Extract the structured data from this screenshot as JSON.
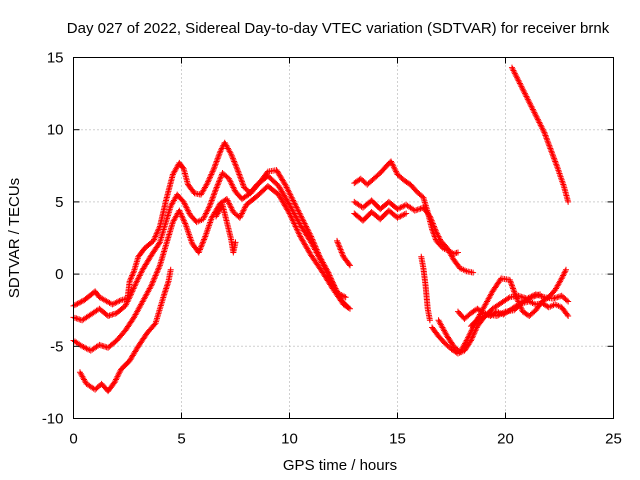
{
  "chart_data": {
    "type": "scatter",
    "title": "Day 027 of 2022, Sidereal Day-to-day VTEC variation (SDTVAR) for receiver brnk",
    "xlabel": "GPS time / hours",
    "ylabel": "SDTVAR / TECUs",
    "xlim": [
      0,
      25
    ],
    "ylim": [
      -10,
      15
    ],
    "xticks": [
      0,
      5,
      10,
      15,
      20,
      25
    ],
    "yticks": [
      -10,
      -5,
      0,
      5,
      10,
      15
    ],
    "xtick_labels": [
      "0",
      "5",
      "10",
      "15",
      "20",
      "25"
    ],
    "ytick_labels": [
      "-10",
      "-5",
      "0",
      "5",
      "10",
      "15"
    ],
    "grid": true,
    "marker": "+",
    "color": "#ff0000",
    "series": [
      {
        "name": "track-1",
        "points": [
          [
            0,
            -2.2
          ],
          [
            0.5,
            -1.8
          ],
          [
            1.0,
            -1.2
          ],
          [
            1.2,
            -1.6
          ],
          [
            1.8,
            -2.1
          ],
          [
            2.2,
            -1.8
          ],
          [
            2.5,
            -1.7
          ],
          [
            2.6,
            -0.5
          ],
          [
            2.8,
            0.2
          ],
          [
            3.0,
            1.2
          ],
          [
            3.3,
            1.8
          ],
          [
            3.7,
            2.3
          ],
          [
            4.0,
            3.3
          ],
          [
            4.3,
            5.2
          ],
          [
            4.6,
            6.9
          ],
          [
            4.9,
            7.7
          ],
          [
            5.1,
            7.3
          ],
          [
            5.3,
            6.2
          ],
          [
            5.6,
            5.6
          ],
          [
            5.9,
            5.5
          ],
          [
            6.2,
            6.3
          ],
          [
            6.5,
            7.3
          ],
          [
            6.8,
            8.5
          ],
          [
            7.0,
            9.1
          ],
          [
            7.3,
            8.3
          ],
          [
            7.6,
            7.2
          ],
          [
            7.9,
            6.0
          ],
          [
            8.2,
            5.6
          ],
          [
            8.6,
            6.3
          ],
          [
            9.0,
            7.1
          ],
          [
            9.4,
            7.2
          ],
          [
            9.8,
            6.2
          ],
          [
            10.2,
            5.0
          ],
          [
            10.6,
            3.8
          ],
          [
            11.0,
            2.6
          ],
          [
            11.4,
            1.2
          ],
          [
            11.8,
            0.1
          ],
          [
            12.2,
            -1.3
          ],
          [
            12.6,
            -1.6
          ]
        ]
      },
      {
        "name": "track-2",
        "points": [
          [
            0,
            -3.0
          ],
          [
            0.4,
            -3.2
          ],
          [
            0.8,
            -2.8
          ],
          [
            1.2,
            -2.4
          ],
          [
            1.6,
            -2.9
          ],
          [
            2.0,
            -2.7
          ],
          [
            2.4,
            -2.2
          ],
          [
            2.6,
            -1.6
          ],
          [
            2.9,
            -0.6
          ],
          [
            3.2,
            0.3
          ],
          [
            3.6,
            1.3
          ],
          [
            4.0,
            2.2
          ],
          [
            4.2,
            3.2
          ],
          [
            4.5,
            4.7
          ],
          [
            4.8,
            5.5
          ],
          [
            5.1,
            5.0
          ],
          [
            5.4,
            4.1
          ],
          [
            5.7,
            3.6
          ],
          [
            6.0,
            3.8
          ],
          [
            6.3,
            4.7
          ],
          [
            6.6,
            5.9
          ],
          [
            6.9,
            7.0
          ],
          [
            7.2,
            6.6
          ],
          [
            7.5,
            5.7
          ],
          [
            7.8,
            5.2
          ],
          [
            8.1,
            5.5
          ],
          [
            8.5,
            6.2
          ],
          [
            9.0,
            6.8
          ],
          [
            9.5,
            6.1
          ],
          [
            10.0,
            4.8
          ],
          [
            10.5,
            3.4
          ],
          [
            11.0,
            2.2
          ],
          [
            11.5,
            0.8
          ],
          [
            12.0,
            -0.6
          ],
          [
            12.4,
            -1.8
          ],
          [
            12.7,
            -2.3
          ]
        ]
      },
      {
        "name": "track-3",
        "points": [
          [
            0,
            -4.6
          ],
          [
            0.4,
            -5.0
          ],
          [
            0.8,
            -5.3
          ],
          [
            1.2,
            -4.9
          ],
          [
            1.6,
            -5.1
          ],
          [
            2.0,
            -4.6
          ],
          [
            2.4,
            -3.9
          ],
          [
            2.8,
            -3.0
          ],
          [
            3.2,
            -1.9
          ],
          [
            3.6,
            -0.8
          ],
          [
            4.0,
            0.6
          ],
          [
            4.3,
            2.1
          ],
          [
            4.6,
            3.6
          ],
          [
            4.9,
            4.4
          ],
          [
            5.2,
            3.4
          ],
          [
            5.5,
            2.1
          ],
          [
            5.8,
            1.5
          ],
          [
            6.1,
            2.6
          ],
          [
            6.4,
            3.9
          ],
          [
            6.8,
            4.9
          ],
          [
            7.1,
            5.2
          ],
          [
            7.4,
            4.3
          ],
          [
            7.7,
            3.9
          ],
          [
            8.0,
            4.8
          ],
          [
            8.5,
            5.4
          ],
          [
            9.0,
            6.1
          ],
          [
            9.5,
            5.5
          ],
          [
            10.0,
            4.2
          ],
          [
            10.5,
            2.6
          ],
          [
            11.0,
            1.3
          ],
          [
            11.5,
            0.2
          ],
          [
            12.0,
            -1.0
          ],
          [
            12.5,
            -2.1
          ],
          [
            12.8,
            -2.4
          ]
        ]
      },
      {
        "name": "track-4",
        "points": [
          [
            0.3,
            -6.8
          ],
          [
            0.6,
            -7.6
          ],
          [
            1.0,
            -8.0
          ],
          [
            1.3,
            -7.6
          ],
          [
            1.6,
            -8.1
          ],
          [
            1.9,
            -7.5
          ],
          [
            2.2,
            -6.6
          ],
          [
            2.6,
            -6.0
          ],
          [
            3.0,
            -5.0
          ],
          [
            3.4,
            -4.1
          ],
          [
            3.8,
            -3.4
          ],
          [
            4.0,
            -2.4
          ],
          [
            4.2,
            -1.4
          ],
          [
            4.4,
            -0.5
          ],
          [
            4.5,
            0.3
          ]
        ]
      },
      {
        "name": "track-5",
        "points": [
          [
            6.6,
            4.0
          ],
          [
            6.9,
            4.8
          ],
          [
            7.1,
            3.6
          ],
          [
            7.3,
            2.4
          ],
          [
            7.4,
            1.5
          ],
          [
            7.5,
            2.2
          ]
        ]
      },
      {
        "name": "track-6",
        "points": [
          [
            12.2,
            2.3
          ],
          [
            12.5,
            1.2
          ],
          [
            12.8,
            0.6
          ]
        ]
      },
      {
        "name": "track-7",
        "points": [
          [
            13.0,
            6.3
          ],
          [
            13.3,
            6.6
          ],
          [
            13.6,
            6.2
          ],
          [
            13.9,
            6.6
          ],
          [
            14.2,
            7.0
          ],
          [
            14.5,
            7.5
          ],
          [
            14.7,
            7.8
          ],
          [
            15.0,
            6.9
          ],
          [
            15.3,
            6.5
          ],
          [
            15.6,
            6.2
          ],
          [
            15.9,
            5.7
          ],
          [
            16.2,
            5.3
          ],
          [
            16.4,
            4.3
          ],
          [
            16.6,
            3.1
          ],
          [
            16.8,
            2.3
          ],
          [
            17.1,
            1.8
          ],
          [
            17.4,
            1.6
          ],
          [
            17.6,
            1.4
          ],
          [
            17.8,
            1.5
          ]
        ]
      },
      {
        "name": "track-8",
        "points": [
          [
            13.0,
            5.0
          ],
          [
            13.4,
            4.6
          ],
          [
            13.8,
            5.1
          ],
          [
            14.2,
            4.5
          ],
          [
            14.6,
            5.0
          ],
          [
            15.0,
            4.5
          ],
          [
            15.4,
            4.8
          ],
          [
            15.8,
            4.4
          ],
          [
            16.2,
            4.6
          ],
          [
            16.5,
            4.0
          ],
          [
            16.8,
            2.9
          ],
          [
            17.0,
            2.3
          ],
          [
            17.3,
            1.8
          ],
          [
            17.6,
            1.0
          ],
          [
            17.9,
            0.4
          ],
          [
            18.2,
            0.2
          ],
          [
            18.5,
            0.1
          ]
        ]
      },
      {
        "name": "track-9",
        "points": [
          [
            13.0,
            4.2
          ],
          [
            13.4,
            3.7
          ],
          [
            13.8,
            4.3
          ],
          [
            14.2,
            3.8
          ],
          [
            14.6,
            4.4
          ],
          [
            15.0,
            3.9
          ],
          [
            15.4,
            4.2
          ]
        ]
      },
      {
        "name": "track-10",
        "points": [
          [
            16.1,
            1.2
          ],
          [
            16.2,
            0.4
          ],
          [
            16.3,
            -0.8
          ],
          [
            16.4,
            -2.4
          ],
          [
            16.5,
            -3.2
          ]
        ]
      },
      {
        "name": "track-11",
        "points": [
          [
            16.6,
            -3.7
          ],
          [
            16.9,
            -4.3
          ],
          [
            17.2,
            -4.8
          ],
          [
            17.5,
            -5.2
          ],
          [
            17.8,
            -5.5
          ],
          [
            18.1,
            -5.3
          ],
          [
            18.4,
            -4.6
          ],
          [
            18.7,
            -3.6
          ],
          [
            19.0,
            -3.0
          ],
          [
            19.4,
            -2.4
          ],
          [
            19.8,
            -2.0
          ],
          [
            20.2,
            -1.6
          ],
          [
            20.6,
            -1.5
          ],
          [
            21.0,
            -1.7
          ],
          [
            21.4,
            -1.4
          ],
          [
            21.8,
            -1.6
          ],
          [
            22.2,
            -1.7
          ],
          [
            22.6,
            -1.5
          ],
          [
            22.9,
            -1.9
          ]
        ]
      },
      {
        "name": "track-12",
        "points": [
          [
            16.9,
            -3.2
          ],
          [
            17.3,
            -4.3
          ],
          [
            17.6,
            -5.0
          ],
          [
            17.9,
            -5.4
          ],
          [
            18.2,
            -4.6
          ],
          [
            18.6,
            -3.4
          ],
          [
            19.0,
            -2.3
          ],
          [
            19.4,
            -1.2
          ],
          [
            19.8,
            -0.3
          ],
          [
            20.2,
            -0.4
          ],
          [
            20.5,
            -1.6
          ],
          [
            20.8,
            -2.6
          ],
          [
            21.1,
            -2.9
          ],
          [
            21.4,
            -2.5
          ],
          [
            21.7,
            -1.9
          ],
          [
            22.0,
            -1.6
          ],
          [
            22.3,
            -1.1
          ],
          [
            22.6,
            -0.3
          ],
          [
            22.8,
            0.3
          ]
        ]
      },
      {
        "name": "track-13",
        "points": [
          [
            17.8,
            -2.6
          ],
          [
            18.1,
            -3.1
          ],
          [
            18.4,
            -2.7
          ],
          [
            18.7,
            -2.4
          ],
          [
            19.0,
            -2.7
          ],
          [
            19.3,
            -2.9
          ],
          [
            19.6,
            -2.6
          ],
          [
            19.9,
            -2.8
          ],
          [
            20.2,
            -2.5
          ],
          [
            20.5,
            -2.2
          ],
          [
            20.8,
            -2.0
          ],
          [
            21.1,
            -1.9
          ],
          [
            21.4,
            -2.1
          ],
          [
            21.7,
            -2.0
          ],
          [
            22.0,
            -2.3
          ],
          [
            22.3,
            -2.1
          ],
          [
            22.6,
            -2.3
          ],
          [
            22.9,
            -2.9
          ]
        ]
      },
      {
        "name": "track-14",
        "points": [
          [
            18.4,
            -3.6
          ],
          [
            18.8,
            -3.0
          ],
          [
            19.2,
            -2.8
          ],
          [
            19.6,
            -2.9
          ],
          [
            20.0,
            -2.6
          ],
          [
            20.4,
            -2.5
          ],
          [
            20.8,
            -1.9
          ],
          [
            21.2,
            -1.6
          ],
          [
            21.6,
            -1.4
          ]
        ]
      },
      {
        "name": "track-15",
        "points": [
          [
            20.3,
            14.3
          ],
          [
            20.6,
            13.4
          ],
          [
            20.9,
            12.5
          ],
          [
            21.2,
            11.6
          ],
          [
            21.5,
            10.7
          ],
          [
            21.8,
            9.8
          ],
          [
            22.1,
            8.6
          ],
          [
            22.4,
            7.4
          ],
          [
            22.7,
            6.1
          ],
          [
            22.9,
            5.0
          ]
        ]
      }
    ]
  }
}
